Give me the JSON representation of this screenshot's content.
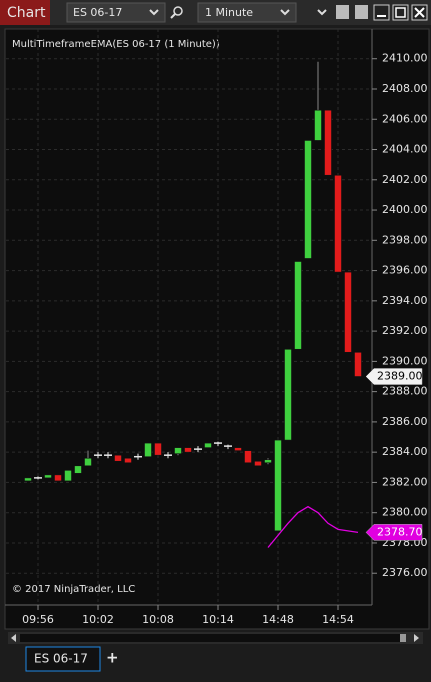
{
  "toolbar": {
    "title": "Chart",
    "instrument": "ES 06-17",
    "interval": "1 Minute"
  },
  "chart_data": {
    "type": "candlestick",
    "indicator_label": "MultiTimeframeEMA(ES 06-17 (1 Minute))",
    "copyright": "© 2017 NinjaTrader, LLC",
    "categories": [
      null,
      "09:56",
      null,
      null,
      null,
      null,
      null,
      "10:02",
      null,
      null,
      null,
      null,
      null,
      "10:08",
      null,
      null,
      null,
      null,
      null,
      "10:14",
      null,
      null,
      null,
      null,
      null,
      "14:48",
      null,
      null,
      null,
      null,
      null,
      "14:54",
      null,
      null
    ],
    "open": [
      2382.1,
      2382.3,
      2382.3,
      2382.5,
      2382.1,
      2382.6,
      2383.1,
      2383.8,
      2383.8,
      2383.8,
      2383.6,
      2383.7,
      2383.7,
      2384.6,
      2383.8,
      2383.9,
      2384.3,
      2384.2,
      2384.3,
      2384.6,
      2384.4,
      2384.3,
      2384.1,
      2383.4,
      2383.3,
      2378.8,
      2384.8,
      2390.8,
      2396.8,
      2404.6,
      2406.6,
      2402.3,
      2395.9,
      2390.6
    ],
    "high": [
      2382.3,
      2382.4,
      2382.5,
      2382.5,
      2382.8,
      2383.1,
      2384.1,
      2384.0,
      2384.0,
      2383.8,
      2383.6,
      2383.9,
      2384.6,
      2384.6,
      2384.0,
      2384.3,
      2384.3,
      2384.4,
      2384.6,
      2384.7,
      2384.5,
      2384.3,
      2384.1,
      2383.4,
      2383.6,
      2384.8,
      2390.8,
      2396.6,
      2404.6,
      2409.8,
      2406.6,
      2402.3,
      2395.9,
      2390.6
    ],
    "low": [
      2382.1,
      2382.2,
      2382.3,
      2382.1,
      2382.1,
      2382.6,
      2383.1,
      2383.6,
      2383.6,
      2383.4,
      2383.3,
      2383.5,
      2383.7,
      2383.8,
      2383.6,
      2383.8,
      2384.0,
      2384.0,
      2384.3,
      2384.4,
      2384.2,
      2384.1,
      2383.3,
      2383.1,
      2383.2,
      2378.8,
      2384.8,
      2390.8,
      2396.8,
      2404.6,
      2402.3,
      2395.9,
      2390.6,
      2389.0
    ],
    "close": [
      2382.3,
      2382.3,
      2382.5,
      2382.1,
      2382.8,
      2383.1,
      2383.6,
      2383.8,
      2383.8,
      2383.4,
      2383.3,
      2383.7,
      2384.6,
      2383.8,
      2383.8,
      2384.3,
      2384.0,
      2384.2,
      2384.6,
      2384.6,
      2384.4,
      2384.1,
      2383.3,
      2383.1,
      2383.5,
      2384.8,
      2390.8,
      2396.6,
      2404.6,
      2406.6,
      2402.3,
      2395.9,
      2390.6,
      2389.0
    ],
    "close_labels": [
      null,
      null,
      null,
      null,
      null,
      null,
      null,
      null,
      null,
      null,
      null,
      null,
      null,
      null,
      null,
      null,
      null,
      null,
      null,
      null,
      null,
      null,
      null,
      null,
      null,
      null,
      null,
      null,
      null,
      null,
      null,
      null,
      null,
      "2389.00"
    ],
    "up_color": "#3fd03f",
    "down_color": "#e31b1b",
    "doji_color": "#e8e8e8",
    "indicator": {
      "color": "#e000e0",
      "values": [
        null,
        null,
        null,
        null,
        null,
        null,
        null,
        null,
        null,
        null,
        null,
        null,
        null,
        null,
        null,
        null,
        null,
        null,
        null,
        null,
        null,
        null,
        null,
        null,
        2377.7,
        2378.5,
        2379.3,
        2380.0,
        2380.4,
        2380.0,
        2379.3,
        2378.9,
        2378.8,
        2378.7
      ],
      "value_labels": [
        null,
        null,
        null,
        null,
        null,
        null,
        null,
        null,
        null,
        null,
        null,
        null,
        null,
        null,
        null,
        null,
        null,
        null,
        null,
        null,
        null,
        null,
        null,
        null,
        null,
        null,
        null,
        null,
        null,
        null,
        null,
        null,
        null,
        "2378.70"
      ]
    },
    "ylim": [
      2373.9,
      2411.7
    ],
    "yticks": [
      {
        "value": 2376,
        "label": "2376.00"
      },
      {
        "value": 2378,
        "label": "2378.00"
      },
      {
        "value": 2380,
        "label": "2380.00"
      },
      {
        "value": 2382,
        "label": "2382.00"
      },
      {
        "value": 2384,
        "label": "2384.00"
      },
      {
        "value": 2386,
        "label": "2386.00"
      },
      {
        "value": 2388,
        "label": "2388.00"
      },
      {
        "value": 2390,
        "label": "2390.00"
      },
      {
        "value": 2392,
        "label": "2392.00"
      },
      {
        "value": 2394,
        "label": "2394.00"
      },
      {
        "value": 2396,
        "label": "2396.00"
      },
      {
        "value": 2398,
        "label": "2398.00"
      },
      {
        "value": 2400,
        "label": "2400.00"
      },
      {
        "value": 2402,
        "label": "2402.00"
      },
      {
        "value": 2404,
        "label": "2404.00"
      },
      {
        "value": 2406,
        "label": "2406.00"
      },
      {
        "value": 2408,
        "label": "2408.00"
      },
      {
        "value": 2410,
        "label": "2410.00"
      }
    ],
    "grid": true
  },
  "tabs": {
    "active": "ES 06-17",
    "add": "+"
  }
}
